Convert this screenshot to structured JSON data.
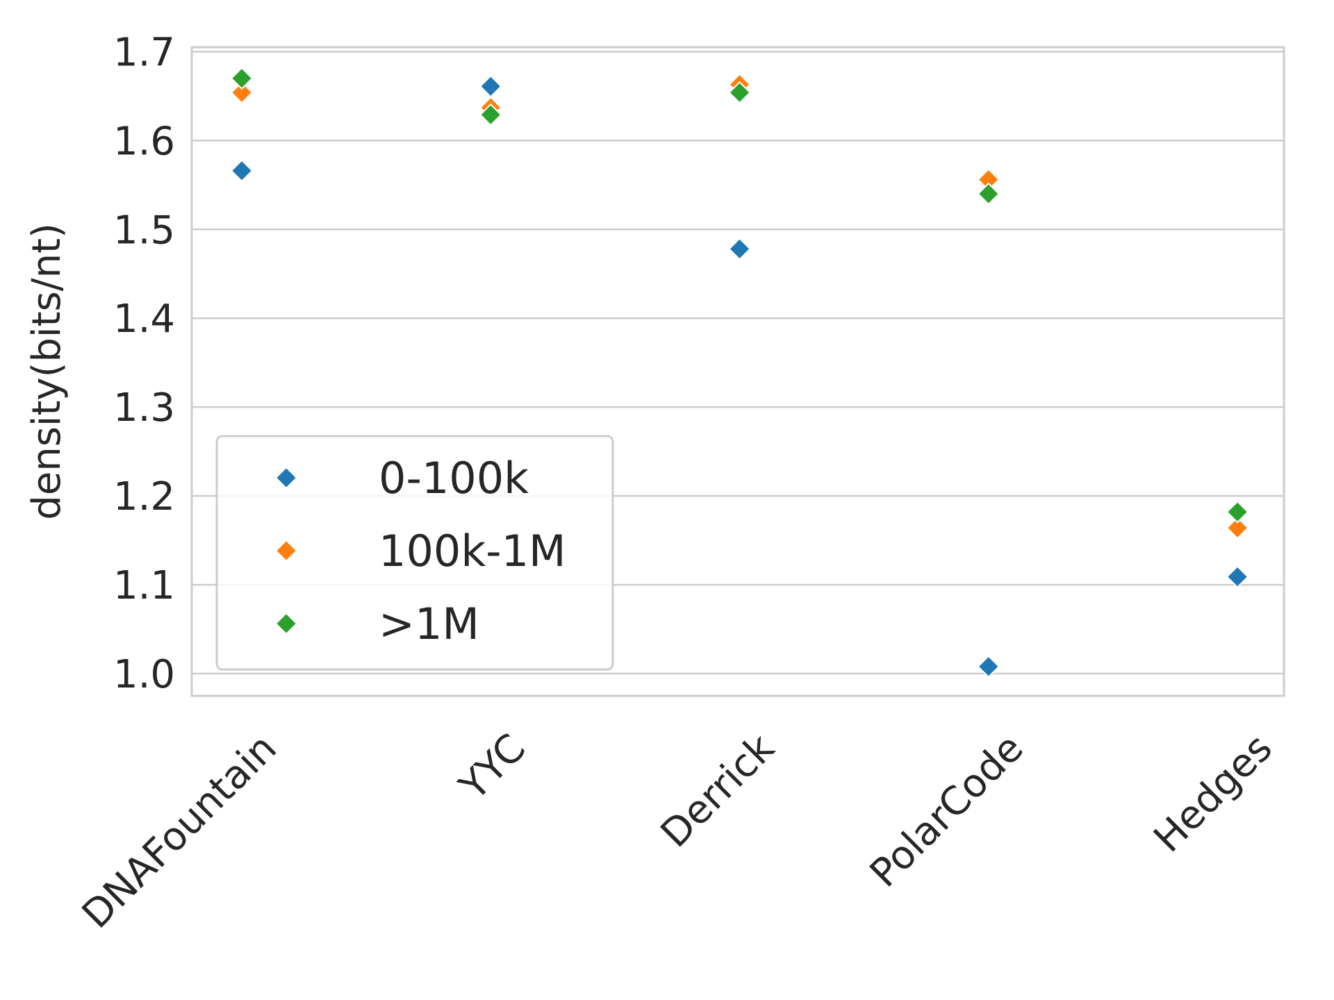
{
  "chart_data": {
    "type": "scatter",
    "categories": [
      "DNAFountain",
      "YYC",
      "Derrick",
      "PolarCode",
      "Hedges"
    ],
    "series": [
      {
        "name": "0-100k",
        "color": "#1f77b4",
        "values": [
          1.566,
          1.661,
          1.478,
          1.008,
          1.109
        ]
      },
      {
        "name": "100k-1M",
        "color": "#ff7f0e",
        "values": [
          1.654,
          1.637,
          1.663,
          1.556,
          1.164
        ]
      },
      {
        "name": ">1M",
        "color": "#2ca02c",
        "values": [
          1.67,
          1.629,
          1.654,
          1.54,
          1.182
        ]
      }
    ],
    "marker": "diamond",
    "ylabel": "density(bits/nt)",
    "xlabel": "",
    "yticks": [
      "1.0",
      "1.1",
      "1.2",
      "1.3",
      "1.4",
      "1.5",
      "1.6",
      "1.7"
    ],
    "ylim": [
      0.975,
      1.705
    ],
    "grid": "horizontal",
    "legend_position": "lower-left"
  }
}
